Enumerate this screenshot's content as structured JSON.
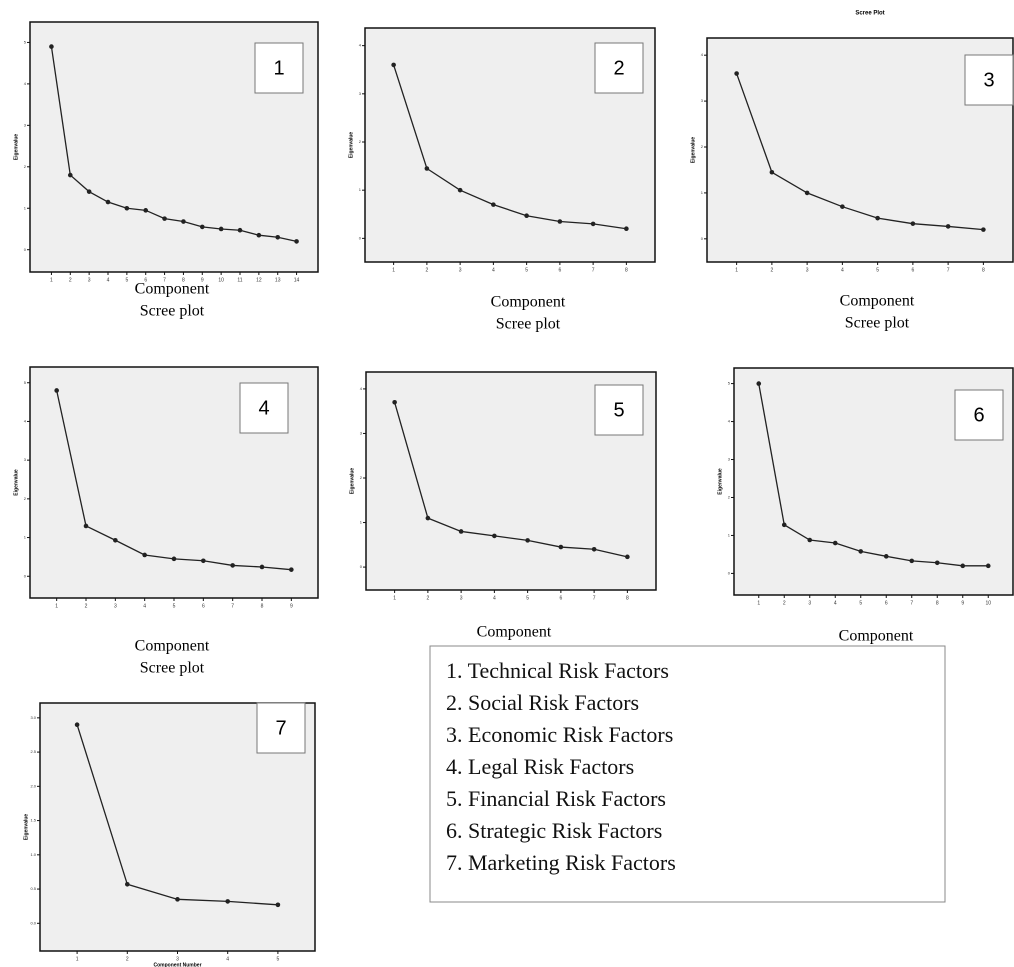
{
  "chart_data": [
    {
      "type": "line",
      "label": "1",
      "xlabel": "Component",
      "ylabel": "Eigenvalue",
      "caption": "Scree plot",
      "categories": [
        "1",
        "2",
        "3",
        "4",
        "5",
        "6",
        "7",
        "8",
        "9",
        "10",
        "11",
        "12",
        "13",
        "14"
      ],
      "values": [
        4.9,
        1.8,
        1.4,
        1.15,
        1.0,
        0.95,
        0.75,
        0.68,
        0.55,
        0.5,
        0.47,
        0.35,
        0.3,
        0.2
      ],
      "ylim": [
        -0.2,
        5.3
      ],
      "yticks": [
        0,
        1,
        2,
        3,
        4,
        5
      ],
      "color": "#222222"
    },
    {
      "type": "line",
      "label": "2",
      "xlabel": "Component",
      "ylabel": "Eigenvalue",
      "caption": "Scree plot",
      "categories": [
        "1",
        "2",
        "3",
        "4",
        "5",
        "6",
        "7",
        "8"
      ],
      "values": [
        3.6,
        1.45,
        1.0,
        0.7,
        0.47,
        0.35,
        0.3,
        0.2
      ],
      "ylim": [
        -0.2,
        4.2
      ],
      "yticks": [
        0,
        1,
        2,
        3,
        4
      ],
      "color": "#222222"
    },
    {
      "type": "line",
      "title": "Scree Plot",
      "label": "3",
      "xlabel": "Component",
      "ylabel": "Eigenvalue",
      "caption": "Scree plot",
      "categories": [
        "1",
        "2",
        "3",
        "4",
        "5",
        "6",
        "7",
        "8"
      ],
      "values": [
        3.6,
        1.45,
        1.0,
        0.7,
        0.45,
        0.33,
        0.27,
        0.2
      ],
      "ylim": [
        -0.2,
        4.2
      ],
      "yticks": [
        0,
        1,
        2,
        3,
        4
      ],
      "color": "#222222"
    },
    {
      "type": "line",
      "label": "4",
      "xlabel": "Component",
      "ylabel": "Eigenvalue",
      "caption": "Scree plot",
      "categories": [
        "1",
        "2",
        "3",
        "4",
        "5",
        "6",
        "7",
        "8",
        "9"
      ],
      "values": [
        4.8,
        1.3,
        0.93,
        0.55,
        0.45,
        0.4,
        0.28,
        0.24,
        0.17
      ],
      "ylim": [
        -0.2,
        5.2
      ],
      "yticks": [
        0,
        1,
        2,
        3,
        4,
        5
      ],
      "color": "#222222"
    },
    {
      "type": "line",
      "label": "5",
      "xlabel": "Component",
      "ylabel": "Eigenvalue",
      "categories": [
        "1",
        "2",
        "3",
        "4",
        "5",
        "6",
        "7",
        "8"
      ],
      "values": [
        3.7,
        1.1,
        0.8,
        0.7,
        0.6,
        0.45,
        0.4,
        0.23
      ],
      "ylim": [
        -0.2,
        4.2
      ],
      "yticks": [
        0,
        1,
        2,
        3,
        4
      ],
      "color": "#222222"
    },
    {
      "type": "line",
      "label": "6",
      "xlabel": "Component",
      "ylabel": "Eigenvalue",
      "categories": [
        "1",
        "2",
        "3",
        "4",
        "5",
        "6",
        "7",
        "8",
        "9",
        "10"
      ],
      "values": [
        5.0,
        1.28,
        0.88,
        0.8,
        0.58,
        0.45,
        0.33,
        0.28,
        0.2,
        0.2
      ],
      "ylim": [
        -0.2,
        5.2
      ],
      "yticks": [
        0,
        1,
        2,
        3,
        4,
        5
      ],
      "color": "#222222"
    },
    {
      "type": "line",
      "label": "7",
      "xlabel": "Component Number",
      "ylabel": "Eigenvalue",
      "categories": [
        "1",
        "2",
        "3",
        "4",
        "5"
      ],
      "values": [
        2.9,
        0.57,
        0.35,
        0.32,
        0.27
      ],
      "ylim": [
        -0.2,
        3.1
      ],
      "yticks": [
        {
          "value": 0,
          "label": "0.0"
        },
        {
          "value": 0.5,
          "label": "0.5"
        },
        {
          "value": 1,
          "label": "1.0"
        },
        {
          "value": 1.5,
          "label": "1.5"
        },
        {
          "value": 2,
          "label": "2.0"
        },
        {
          "value": 2.5,
          "label": "2.5"
        },
        {
          "value": 3,
          "label": "3.0"
        }
      ],
      "color": "#222222"
    }
  ],
  "key": {
    "items": [
      "1. Technical Risk Factors",
      "2. Social Risk Factors",
      "3. Economic Risk Factors",
      "4. Legal Risk Factors",
      "5. Financial Risk Factors",
      "6. Strategic Risk Factors",
      "7. Marketing Risk Factors"
    ]
  }
}
